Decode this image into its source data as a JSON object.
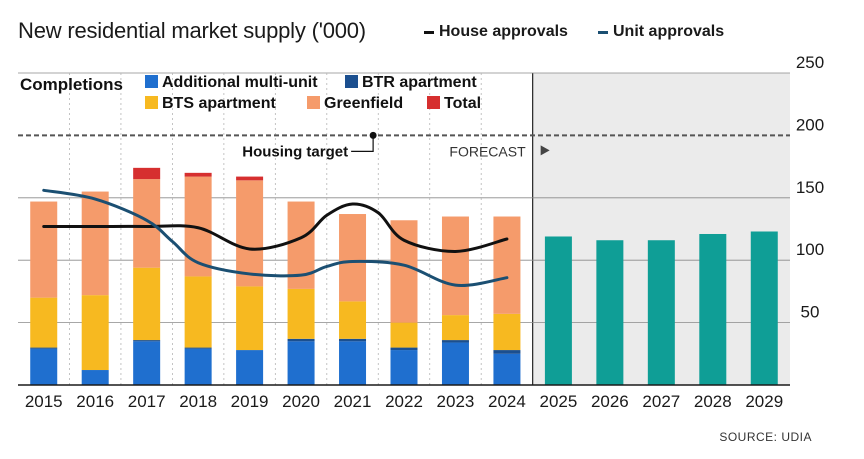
{
  "title": "New residential market supply ('000)",
  "legend_top": [
    {
      "label": "House approvals",
      "color": "#111111"
    },
    {
      "label": "Unit approvals",
      "color": "#1b4f72"
    }
  ],
  "completions_legend": {
    "title": "Completions",
    "items": [
      {
        "label": "Additional multi-unit",
        "color": "#1f6fcf"
      },
      {
        "label": "BTR apartment",
        "color": "#1b4f8f"
      },
      {
        "label": "BTS apartment",
        "color": "#f7b920"
      },
      {
        "label": "Greenfield",
        "color": "#f59b6b"
      },
      {
        "label": "Total",
        "color": "#d62f2f"
      }
    ]
  },
  "annotations": {
    "housing_target": "Housing target",
    "forecast": "FORECAST"
  },
  "source": "SOURCE: UDIA",
  "chart_data": {
    "type": "bar",
    "stacked": true,
    "categories": [
      "2015",
      "2016",
      "2017",
      "2018",
      "2019",
      "2020",
      "2021",
      "2022",
      "2023",
      "2024",
      "2025",
      "2026",
      "2027",
      "2028",
      "2029"
    ],
    "ylim": [
      0,
      250
    ],
    "yticks": [
      50,
      100,
      150,
      200,
      250
    ],
    "grid": true,
    "housing_target": 200,
    "forecast_start": "2025",
    "series": [
      {
        "name": "Additional multi-unit",
        "color": "#1f6fcf",
        "values": [
          29,
          12,
          35,
          29,
          28,
          35,
          35,
          28,
          34,
          25,
          null,
          null,
          null,
          null,
          null
        ]
      },
      {
        "name": "BTR apartment",
        "color": "#1b4f8f",
        "values": [
          1,
          0,
          1,
          1,
          0,
          2,
          2,
          2,
          2,
          3,
          null,
          null,
          null,
          null,
          null
        ]
      },
      {
        "name": "BTS apartment",
        "color": "#f7b920",
        "values": [
          40,
          60,
          58,
          57,
          51,
          40,
          30,
          20,
          20,
          29,
          null,
          null,
          null,
          null,
          null
        ]
      },
      {
        "name": "Greenfield",
        "color": "#f59b6b",
        "values": [
          77,
          83,
          71,
          80,
          85,
          70,
          70,
          82,
          79,
          78,
          null,
          null,
          null,
          null,
          null
        ]
      },
      {
        "name": "Total",
        "color": "#d62f2f",
        "values": [
          0,
          0,
          9,
          3,
          3,
          0,
          0,
          0,
          0,
          0,
          null,
          null,
          null,
          null,
          null
        ]
      }
    ],
    "forecast_totals": {
      "color": "#0f9e96",
      "values": [
        null,
        null,
        null,
        null,
        null,
        null,
        null,
        null,
        null,
        null,
        119,
        116,
        116,
        121,
        123
      ]
    },
    "lines": [
      {
        "name": "House approvals",
        "color": "#111111",
        "x": [
          2015,
          2016,
          2017,
          2018,
          2019,
          2020,
          2020.5,
          2021,
          2021.5,
          2022,
          2023,
          2024
        ],
        "values": [
          127,
          127,
          127,
          126,
          109,
          118,
          136,
          145,
          138,
          116,
          107,
          117
        ]
      },
      {
        "name": "Unit approvals",
        "color": "#1b4f72",
        "x": [
          2015,
          2016,
          2017,
          2017.5,
          2018,
          2019,
          2020,
          2020.5,
          2021,
          2022,
          2023,
          2024
        ],
        "values": [
          156,
          149,
          132,
          115,
          98,
          89,
          88,
          95,
          99,
          96,
          80,
          86
        ]
      }
    ]
  }
}
